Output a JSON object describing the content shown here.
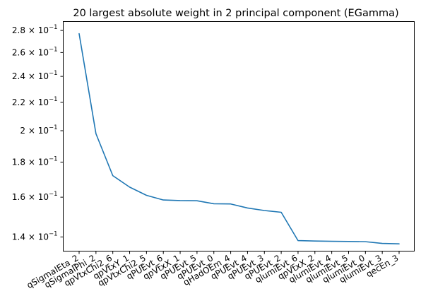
{
  "chart_data": {
    "type": "line",
    "title": "20 largest absolute weight in 2 principal component (EGamma)",
    "xlabel": "",
    "ylabel": "",
    "y_scale": "log",
    "ylim": [
      0.1335,
      0.2885
    ],
    "grid": false,
    "legend": "none",
    "series_color": "#1f77b4",
    "categories": [
      "qSigmaIEta_2",
      "qSigmaIPhi_2",
      "qpVtxChi2_6",
      "qpVtxY_1",
      "qpVtxChi2_5",
      "qPUEvt_6",
      "qpVtxX_1",
      "qPUEvt_5",
      "qPUEvt_0",
      "qHadOEm_4",
      "qPUEvt_4",
      "qPUEvt_3",
      "qPUEvt_2",
      "qlumiEvt_6",
      "qpVtxX_2",
      "qlumiEvt_4",
      "qlumiEvt_5",
      "qlumiEvt_0",
      "qlumiEvt_3",
      "qecEn_3"
    ],
    "values": [
      0.277,
      0.198,
      0.172,
      0.1655,
      0.161,
      0.1585,
      0.1582,
      0.1581,
      0.1565,
      0.1564,
      0.1543,
      0.153,
      0.1521,
      0.1383,
      0.1381,
      0.138,
      0.1379,
      0.1378,
      0.137,
      0.1368
    ],
    "y_ticks": [
      {
        "value": 0.14,
        "mantissa": "1.4",
        "times": "×",
        "base": "10",
        "exponent": "−1"
      },
      {
        "value": 0.16,
        "mantissa": "1.6",
        "times": "×",
        "base": "10",
        "exponent": "−1"
      },
      {
        "value": 0.18,
        "mantissa": "1.8",
        "times": "×",
        "base": "10",
        "exponent": "−1"
      },
      {
        "value": 0.2,
        "mantissa": "2",
        "times": "×",
        "base": "10",
        "exponent": "−1"
      },
      {
        "value": 0.22,
        "mantissa": "2.2",
        "times": "×",
        "base": "10",
        "exponent": "−1"
      },
      {
        "value": 0.24,
        "mantissa": "2.4",
        "times": "×",
        "base": "10",
        "exponent": "−1"
      },
      {
        "value": 0.26,
        "mantissa": "2.6",
        "times": "×",
        "base": "10",
        "exponent": "−1"
      },
      {
        "value": 0.28,
        "mantissa": "2.8",
        "times": "×",
        "base": "10",
        "exponent": "−1"
      }
    ]
  }
}
